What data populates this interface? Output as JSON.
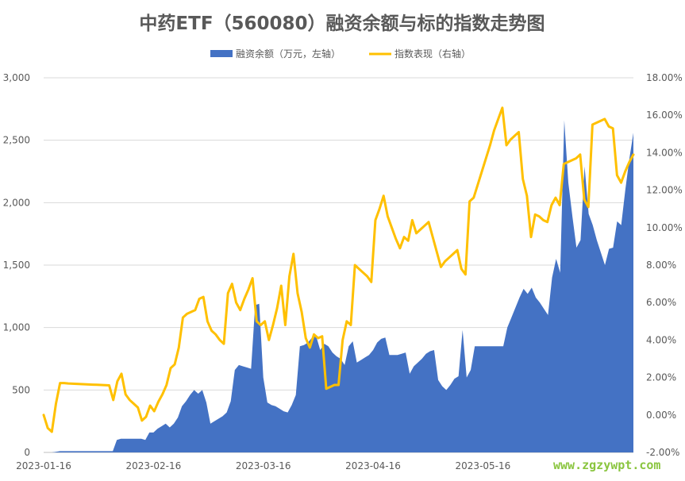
{
  "chart_data": {
    "type": "area",
    "title": "中药ETF（560080）融资余额与标的指数走势图",
    "x_tick_labels": [
      "2023-01-16",
      "2023-02-16",
      "2023-03-16",
      "2023-04-16",
      "2023-05-16"
    ],
    "y_left": {
      "ylim": [
        0,
        3000
      ],
      "ticks": [
        "0",
        "500",
        "1,000",
        "1,500",
        "2,000",
        "2,500",
        "3,000"
      ]
    },
    "y_right": {
      "ylim": [
        -0.02,
        0.18
      ],
      "ticks": [
        "-2.00%",
        "0.00%",
        "2.00%",
        "4.00%",
        "6.00%",
        "8.00%",
        "10.00%",
        "12.00%",
        "14.00%",
        "16.00%",
        "18.00%"
      ]
    },
    "grid": true,
    "legend_placement": "top-center",
    "series": [
      {
        "name": "融资余额（万元，左轴）",
        "type": "area",
        "axis": "left",
        "color": "#4472c4",
        "values": [
          0,
          0,
          0,
          5,
          10,
          10,
          10,
          10,
          10,
          10,
          10,
          10,
          10,
          10,
          10,
          10,
          10,
          10,
          100,
          110,
          110,
          110,
          110,
          110,
          110,
          100,
          160,
          160,
          190,
          210,
          230,
          200,
          230,
          280,
          370,
          410,
          460,
          500,
          470,
          500,
          400,
          230,
          250,
          270,
          290,
          320,
          410,
          660,
          700,
          690,
          680,
          670,
          1180,
          1190,
          600,
          400,
          380,
          370,
          350,
          330,
          320,
          380,
          460,
          850,
          860,
          880,
          920,
          930,
          820,
          870,
          850,
          800,
          770,
          750,
          700,
          850,
          890,
          720,
          740,
          760,
          780,
          820,
          880,
          910,
          920,
          780,
          780,
          780,
          790,
          800,
          630,
          690,
          720,
          750,
          790,
          810,
          820,
          580,
          530,
          500,
          540,
          590,
          610,
          980,
          600,
          660,
          850,
          850,
          850,
          850,
          850,
          850,
          850,
          850,
          1000,
          1080,
          1160,
          1240,
          1310,
          1270,
          1320,
          1240,
          1200,
          1150,
          1100,
          1400,
          1550,
          1440,
          2660,
          2160,
          1890,
          1640,
          1700,
          2290,
          1910,
          1820,
          1700,
          1600,
          1500,
          1630,
          1640,
          1850,
          1820,
          2100,
          2350,
          2560
        ]
      },
      {
        "name": "指数表现（右轴）",
        "type": "line",
        "axis": "right",
        "color": "#ffc000",
        "values": [
          0.0,
          -0.007,
          -0.009,
          0.006,
          0.017,
          0.017,
          0.0168,
          0.0167,
          0.0166,
          0.0165,
          0.0164,
          0.0163,
          0.0162,
          0.0161,
          0.016,
          0.0159,
          0.0158,
          0.008,
          0.018,
          0.022,
          0.011,
          0.008,
          0.006,
          0.004,
          -0.003,
          -0.001,
          0.005,
          0.002,
          0.007,
          0.011,
          0.016,
          0.025,
          0.027,
          0.036,
          0.052,
          0.054,
          0.055,
          0.056,
          0.062,
          0.063,
          0.05,
          0.045,
          0.043,
          0.04,
          0.038,
          0.065,
          0.07,
          0.06,
          0.056,
          0.062,
          0.067,
          0.073,
          0.05,
          0.048,
          0.05,
          0.04,
          0.048,
          0.057,
          0.069,
          0.048,
          0.074,
          0.086,
          0.065,
          0.055,
          0.041,
          0.036,
          0.043,
          0.041,
          0.042,
          0.014,
          0.015,
          0.016,
          0.016,
          0.04,
          0.05,
          0.048,
          0.08,
          0.078,
          0.076,
          0.074,
          0.071,
          0.104,
          0.11,
          0.117,
          0.106,
          0.1,
          0.094,
          0.089,
          0.095,
          0.093,
          0.104,
          0.097,
          0.099,
          0.101,
          0.103,
          0.095,
          0.087,
          0.079,
          0.082,
          0.084,
          0.086,
          0.088,
          0.078,
          0.075,
          0.114,
          0.116,
          0.123,
          0.13,
          0.137,
          0.144,
          0.152,
          0.158,
          0.164,
          0.144,
          0.147,
          0.149,
          0.151,
          0.126,
          0.117,
          0.095,
          0.107,
          0.106,
          0.104,
          0.103,
          0.112,
          0.116,
          0.112,
          0.134,
          0.135,
          0.136,
          0.137,
          0.139,
          0.115,
          0.111,
          0.155,
          0.156,
          0.157,
          0.158,
          0.154,
          0.153,
          0.128,
          0.124,
          0.13,
          0.135,
          0.139
        ]
      }
    ]
  },
  "watermark": "www.zgzywpt.com"
}
